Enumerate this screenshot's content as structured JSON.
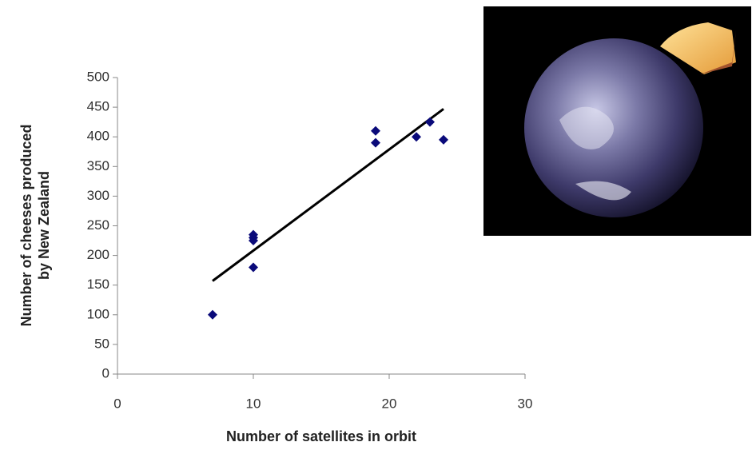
{
  "chart_data": {
    "type": "scatter",
    "x_label": "Number of satellites in orbit",
    "y_label": [
      "Number of cheeses produced",
      "by New Zealand"
    ],
    "x": [
      7,
      10,
      10,
      10,
      10,
      19,
      19,
      22,
      23,
      24
    ],
    "values": [
      100,
      180,
      225,
      230,
      235,
      390,
      410,
      400,
      425,
      395
    ],
    "color": "#0a0a7a",
    "trendline": {
      "x": [
        7,
        24
      ],
      "values": [
        157,
        447
      ],
      "color": "#000000"
    },
    "xlim": [
      0,
      30
    ],
    "xticks": [
      0,
      10,
      20,
      30
    ],
    "ylim": [
      0,
      500
    ],
    "yticks": [
      0,
      50,
      100,
      150,
      200,
      250,
      300,
      350,
      400,
      450,
      500
    ],
    "grid": false
  }
}
